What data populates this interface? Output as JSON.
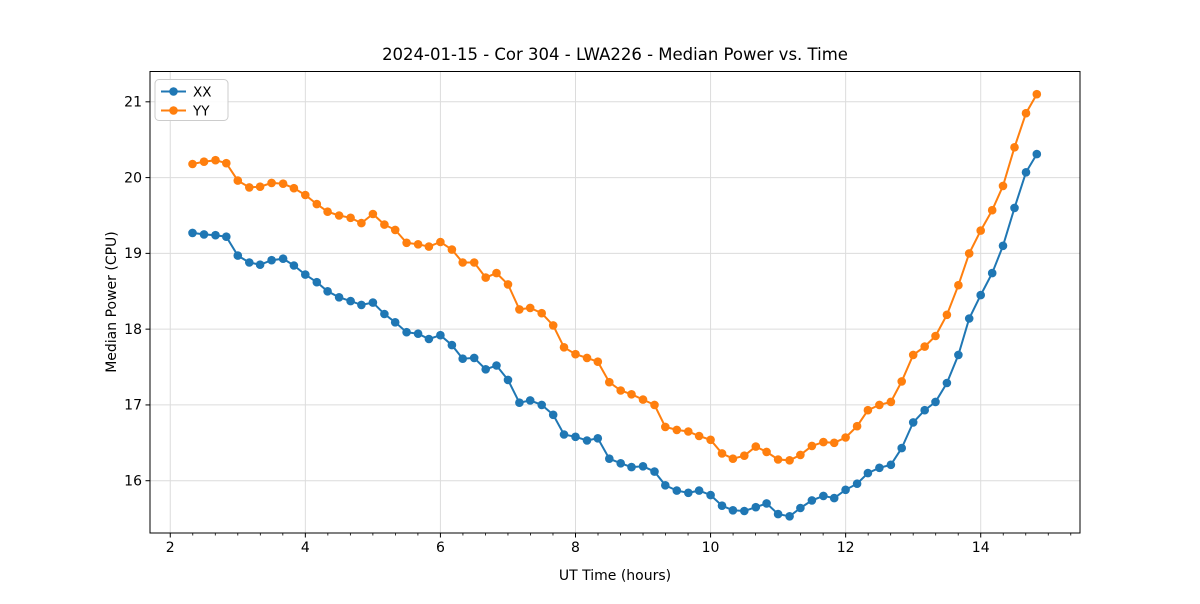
{
  "figure": {
    "background": "#ffffff"
  },
  "chart_data": {
    "type": "line",
    "title": "2024-01-15 - Cor 304 - LWA226 - Median Power vs. Time",
    "xlabel": "UT Time (hours)",
    "ylabel": "Median Power (CPU)",
    "xlim": [
      1.7,
      15.47
    ],
    "ylim": [
      15.31,
      21.4
    ],
    "x_major_ticks": [
      2,
      4,
      6,
      8,
      10,
      12,
      14
    ],
    "x_minor_step": 0.3333,
    "y_major_ticks": [
      16,
      17,
      18,
      19,
      20,
      21
    ],
    "grid": true,
    "grid_color": "#dcdcdc",
    "legend_position": "upper-left",
    "x": [
      2.33,
      2.5,
      2.67,
      2.83,
      3,
      3.17,
      3.33,
      3.5,
      3.67,
      3.83,
      4,
      4.17,
      4.33,
      4.5,
      4.67,
      4.83,
      5,
      5.17,
      5.33,
      5.5,
      5.67,
      5.83,
      6,
      6.17,
      6.33,
      6.5,
      6.67,
      6.83,
      7,
      7.17,
      7.33,
      7.5,
      7.67,
      7.83,
      8,
      8.17,
      8.33,
      8.5,
      8.67,
      8.83,
      9,
      9.17,
      9.33,
      9.5,
      9.67,
      9.83,
      10,
      10.17,
      10.33,
      10.5,
      10.67,
      10.83,
      11,
      11.17,
      11.33,
      11.5,
      11.67,
      11.83,
      12,
      12.17,
      12.33,
      12.5,
      12.67,
      12.83,
      13,
      13.17,
      13.33,
      13.5,
      13.67,
      13.83,
      14,
      14.17,
      14.33,
      14.5,
      14.67,
      14.83
    ],
    "series": [
      {
        "name": "XX",
        "color": "#1f77b4",
        "values": [
          19.27,
          19.25,
          19.24,
          19.22,
          18.97,
          18.88,
          18.85,
          18.91,
          18.93,
          18.84,
          18.72,
          18.62,
          18.5,
          18.42,
          18.37,
          18.32,
          18.35,
          18.2,
          18.09,
          17.96,
          17.94,
          17.87,
          17.92,
          17.79,
          17.61,
          17.62,
          17.47,
          17.52,
          17.33,
          17.03,
          17.06,
          17.0,
          16.87,
          16.61,
          16.58,
          16.53,
          16.56,
          16.29,
          16.23,
          16.18,
          16.19,
          16.12,
          15.94,
          15.87,
          15.84,
          15.87,
          15.81,
          15.67,
          15.61,
          15.6,
          15.65,
          15.7,
          15.56,
          15.53,
          15.64,
          15.74,
          15.8,
          15.77,
          15.88,
          15.96,
          16.1,
          16.17,
          16.21,
          16.43,
          16.77,
          16.93,
          17.04,
          17.29,
          17.66,
          18.14,
          18.45,
          18.74,
          19.1,
          19.6,
          20.07,
          20.31
        ]
      },
      {
        "name": "YY",
        "color": "#ff7f0e",
        "values": [
          20.18,
          20.21,
          20.23,
          20.19,
          19.96,
          19.87,
          19.88,
          19.93,
          19.92,
          19.86,
          19.77,
          19.65,
          19.55,
          19.5,
          19.47,
          19.4,
          19.52,
          19.38,
          19.31,
          19.14,
          19.12,
          19.09,
          19.15,
          19.05,
          18.88,
          18.88,
          18.68,
          18.74,
          18.59,
          18.26,
          18.28,
          18.21,
          18.05,
          17.76,
          17.67,
          17.62,
          17.57,
          17.3,
          17.19,
          17.14,
          17.07,
          17.0,
          16.71,
          16.67,
          16.65,
          16.59,
          16.54,
          16.36,
          16.29,
          16.33,
          16.45,
          16.38,
          16.28,
          16.27,
          16.34,
          16.46,
          16.51,
          16.5,
          16.57,
          16.72,
          16.93,
          17.0,
          17.04,
          17.31,
          17.66,
          17.77,
          17.91,
          18.19,
          18.58,
          19.0,
          19.3,
          19.57,
          19.89,
          20.4,
          20.85,
          21.1
        ]
      }
    ]
  }
}
